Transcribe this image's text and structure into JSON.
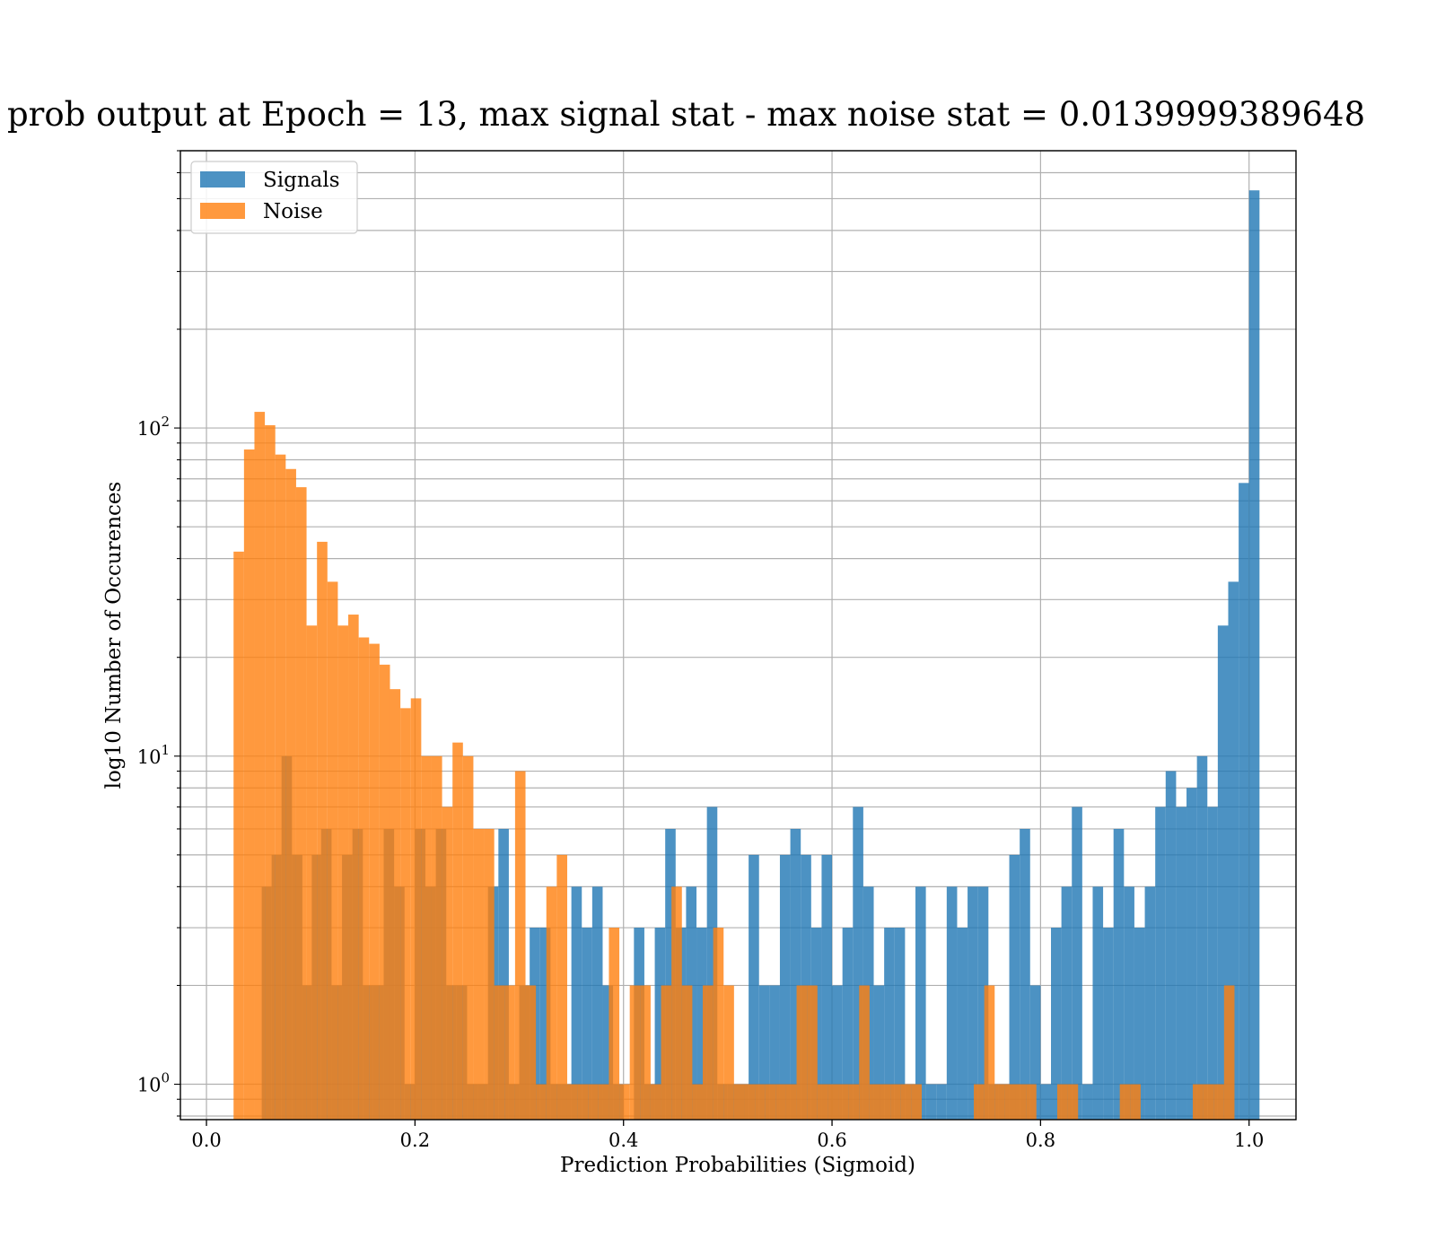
{
  "chart_data": {
    "type": "histogram",
    "title": "prob output at Epoch = 13, max signal stat - max noise stat = 0.0139999389648",
    "xlabel": "Prediction Probabilities (Sigmoid)",
    "ylabel": "log10 Number of Occurences",
    "xlim": [
      -0.025,
      1.045
    ],
    "ylim": [
      0.78,
      700
    ],
    "yscale": "log",
    "grid": true,
    "legend_position": "upper-left",
    "x_ticks": [
      "0.0",
      "0.2",
      "0.4",
      "0.6",
      "0.8",
      "1.0"
    ],
    "y_ticks": [
      {
        "base": "10",
        "exp": "0"
      },
      {
        "base": "10",
        "exp": "1"
      },
      {
        "base": "10",
        "exp": "2"
      }
    ],
    "series": [
      {
        "name": "Signals",
        "color": "#1f77b4",
        "bins": [
          [
            0.053,
            0.0625,
            4
          ],
          [
            0.0625,
            0.072,
            5
          ],
          [
            0.072,
            0.082,
            10
          ],
          [
            0.082,
            0.092,
            5
          ],
          [
            0.092,
            0.101,
            2
          ],
          [
            0.101,
            0.11,
            5
          ],
          [
            0.11,
            0.12,
            6
          ],
          [
            0.12,
            0.13,
            2
          ],
          [
            0.13,
            0.14,
            5
          ],
          [
            0.14,
            0.15,
            6
          ],
          [
            0.15,
            0.16,
            2
          ],
          [
            0.16,
            0.17,
            2
          ],
          [
            0.17,
            0.18,
            6
          ],
          [
            0.18,
            0.19,
            4
          ],
          [
            0.19,
            0.2,
            1
          ],
          [
            0.2,
            0.21,
            6
          ],
          [
            0.21,
            0.22,
            4
          ],
          [
            0.22,
            0.23,
            6
          ],
          [
            0.23,
            0.24,
            2
          ],
          [
            0.24,
            0.25,
            2
          ],
          [
            0.25,
            0.26,
            1
          ],
          [
            0.26,
            0.27,
            1
          ],
          [
            0.27,
            0.28,
            4
          ],
          [
            0.28,
            0.29,
            6
          ],
          [
            0.29,
            0.3,
            1
          ],
          [
            0.3,
            0.31,
            2
          ],
          [
            0.31,
            0.32,
            3
          ],
          [
            0.32,
            0.33,
            3
          ],
          [
            0.33,
            0.34,
            1
          ],
          [
            0.34,
            0.35,
            1
          ],
          [
            0.35,
            0.36,
            4
          ],
          [
            0.36,
            0.37,
            3
          ],
          [
            0.37,
            0.38,
            4
          ],
          [
            0.38,
            0.39,
            2
          ],
          [
            0.39,
            0.4,
            1
          ],
          [
            0.41,
            0.42,
            3
          ],
          [
            0.42,
            0.43,
            1
          ],
          [
            0.43,
            0.44,
            3
          ],
          [
            0.44,
            0.45,
            6
          ],
          [
            0.45,
            0.46,
            3
          ],
          [
            0.46,
            0.47,
            4
          ],
          [
            0.47,
            0.48,
            3
          ],
          [
            0.48,
            0.49,
            7
          ],
          [
            0.49,
            0.5,
            1
          ],
          [
            0.5,
            0.51,
            1
          ],
          [
            0.51,
            0.52,
            1
          ],
          [
            0.52,
            0.53,
            5
          ],
          [
            0.53,
            0.54,
            2
          ],
          [
            0.54,
            0.55,
            2
          ],
          [
            0.55,
            0.56,
            5
          ],
          [
            0.56,
            0.57,
            6
          ],
          [
            0.57,
            0.58,
            5
          ],
          [
            0.58,
            0.59,
            3
          ],
          [
            0.59,
            0.6,
            5
          ],
          [
            0.6,
            0.61,
            2
          ],
          [
            0.61,
            0.62,
            3
          ],
          [
            0.62,
            0.63,
            7
          ],
          [
            0.63,
            0.64,
            4
          ],
          [
            0.64,
            0.65,
            2
          ],
          [
            0.65,
            0.66,
            3
          ],
          [
            0.66,
            0.67,
            3
          ],
          [
            0.67,
            0.68,
            1
          ],
          [
            0.68,
            0.69,
            4
          ],
          [
            0.69,
            0.7,
            1
          ],
          [
            0.7,
            0.71,
            1
          ],
          [
            0.71,
            0.72,
            4
          ],
          [
            0.72,
            0.73,
            3
          ],
          [
            0.73,
            0.74,
            4
          ],
          [
            0.74,
            0.75,
            4
          ],
          [
            0.75,
            0.76,
            1
          ],
          [
            0.76,
            0.77,
            1
          ],
          [
            0.77,
            0.78,
            5
          ],
          [
            0.78,
            0.79,
            6
          ],
          [
            0.79,
            0.8,
            2
          ],
          [
            0.8,
            0.81,
            1
          ],
          [
            0.81,
            0.82,
            3
          ],
          [
            0.82,
            0.83,
            4
          ],
          [
            0.83,
            0.84,
            7
          ],
          [
            0.84,
            0.85,
            1
          ],
          [
            0.85,
            0.86,
            4
          ],
          [
            0.86,
            0.87,
            3
          ],
          [
            0.87,
            0.88,
            6
          ],
          [
            0.88,
            0.89,
            4
          ],
          [
            0.89,
            0.9,
            3
          ],
          [
            0.9,
            0.91,
            4
          ],
          [
            0.91,
            0.92,
            7
          ],
          [
            0.92,
            0.93,
            9
          ],
          [
            0.93,
            0.94,
            7
          ],
          [
            0.94,
            0.95,
            8
          ],
          [
            0.95,
            0.96,
            10
          ],
          [
            0.96,
            0.97,
            7
          ],
          [
            0.97,
            0.98,
            25
          ],
          [
            0.98,
            0.99,
            34
          ],
          [
            0.99,
            1.0,
            68
          ],
          [
            1.0,
            1.01,
            530
          ]
        ]
      },
      {
        "name": "Noise",
        "color": "#ff7f0e",
        "bins": [
          [
            0.026,
            0.036,
            42
          ],
          [
            0.036,
            0.046,
            86
          ],
          [
            0.046,
            0.056,
            112
          ],
          [
            0.056,
            0.066,
            102
          ],
          [
            0.066,
            0.076,
            83
          ],
          [
            0.076,
            0.086,
            75
          ],
          [
            0.086,
            0.096,
            66
          ],
          [
            0.096,
            0.106,
            25
          ],
          [
            0.106,
            0.116,
            45
          ],
          [
            0.116,
            0.126,
            34
          ],
          [
            0.126,
            0.136,
            25
          ],
          [
            0.136,
            0.146,
            27
          ],
          [
            0.146,
            0.156,
            23
          ],
          [
            0.156,
            0.166,
            22
          ],
          [
            0.166,
            0.176,
            19
          ],
          [
            0.176,
            0.186,
            16
          ],
          [
            0.186,
            0.196,
            14
          ],
          [
            0.196,
            0.206,
            15
          ],
          [
            0.206,
            0.216,
            10
          ],
          [
            0.216,
            0.226,
            10
          ],
          [
            0.226,
            0.236,
            7
          ],
          [
            0.236,
            0.246,
            11
          ],
          [
            0.246,
            0.256,
            10
          ],
          [
            0.256,
            0.266,
            6
          ],
          [
            0.266,
            0.276,
            6
          ],
          [
            0.276,
            0.286,
            2
          ],
          [
            0.286,
            0.296,
            2
          ],
          [
            0.296,
            0.306,
            9
          ],
          [
            0.306,
            0.316,
            2
          ],
          [
            0.316,
            0.326,
            1
          ],
          [
            0.326,
            0.336,
            4
          ],
          [
            0.336,
            0.346,
            5
          ],
          [
            0.346,
            0.356,
            1
          ],
          [
            0.356,
            0.366,
            1
          ],
          [
            0.366,
            0.376,
            1
          ],
          [
            0.376,
            0.386,
            1
          ],
          [
            0.386,
            0.396,
            3
          ],
          [
            0.396,
            0.406,
            1
          ],
          [
            0.406,
            0.416,
            2
          ],
          [
            0.416,
            0.426,
            2
          ],
          [
            0.426,
            0.436,
            1
          ],
          [
            0.436,
            0.446,
            2
          ],
          [
            0.446,
            0.456,
            4
          ],
          [
            0.456,
            0.466,
            2
          ],
          [
            0.466,
            0.476,
            1
          ],
          [
            0.476,
            0.486,
            2
          ],
          [
            0.486,
            0.496,
            3
          ],
          [
            0.496,
            0.506,
            2
          ],
          [
            0.506,
            0.516,
            1
          ],
          [
            0.516,
            0.526,
            1
          ],
          [
            0.526,
            0.536,
            1
          ],
          [
            0.536,
            0.546,
            1
          ],
          [
            0.546,
            0.556,
            1
          ],
          [
            0.556,
            0.566,
            1
          ],
          [
            0.566,
            0.576,
            2
          ],
          [
            0.576,
            0.586,
            2
          ],
          [
            0.586,
            0.596,
            1
          ],
          [
            0.596,
            0.606,
            1
          ],
          [
            0.606,
            0.616,
            1
          ],
          [
            0.616,
            0.626,
            1
          ],
          [
            0.626,
            0.636,
            2
          ],
          [
            0.636,
            0.646,
            1
          ],
          [
            0.646,
            0.656,
            1
          ],
          [
            0.656,
            0.666,
            1
          ],
          [
            0.666,
            0.676,
            1
          ],
          [
            0.676,
            0.686,
            1
          ],
          [
            0.736,
            0.746,
            1
          ],
          [
            0.746,
            0.756,
            2
          ],
          [
            0.756,
            0.766,
            1
          ],
          [
            0.766,
            0.776,
            1
          ],
          [
            0.776,
            0.786,
            1
          ],
          [
            0.786,
            0.796,
            1
          ],
          [
            0.816,
            0.826,
            1
          ],
          [
            0.826,
            0.836,
            1
          ],
          [
            0.876,
            0.886,
            1
          ],
          [
            0.886,
            0.896,
            1
          ],
          [
            0.946,
            0.956,
            1
          ],
          [
            0.956,
            0.966,
            1
          ],
          [
            0.966,
            0.976,
            1
          ],
          [
            0.976,
            0.986,
            2
          ]
        ]
      }
    ]
  }
}
